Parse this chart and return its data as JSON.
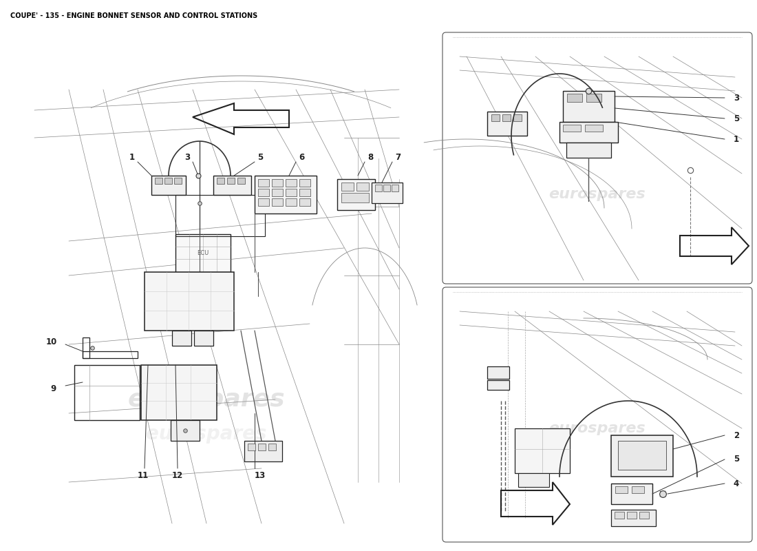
{
  "title": "COUPE' - 135 - ENGINE BONNET SENSOR AND CONTROL STATIONS",
  "title_fontsize": 7,
  "title_color": "#000000",
  "bg": "#ffffff",
  "line_color": "#222222",
  "light_line": "#888888",
  "watermark": "eurospares",
  "wm_color": "#bbbbbb",
  "wm_alpha": 0.4,
  "part_label_size": 8.5
}
